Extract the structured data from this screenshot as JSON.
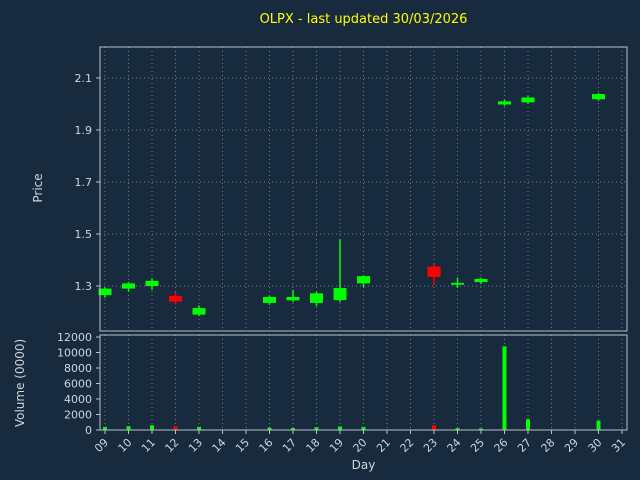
{
  "colors": {
    "background": "#182a3d",
    "title": "#ffff00",
    "text": "#cdd5de",
    "grid": "#aab6c2",
    "spine": "#b9c2cc",
    "up": "#00ff00",
    "down": "#ff0000"
  },
  "chart_data": {
    "type": "candlestick",
    "title": "OLPX - last updated 30/03/2026",
    "xlabel": "Day",
    "ylabel_price": "Price",
    "ylabel_volume": "Volume (0000)",
    "x_ticks": [
      "09",
      "10",
      "11",
      "12",
      "13",
      "14",
      "15",
      "16",
      "17",
      "18",
      "19",
      "20",
      "21",
      "22",
      "23",
      "24",
      "25",
      "26",
      "27",
      "28",
      "29",
      "30",
      "31"
    ],
    "price_ticks": [
      1.3,
      1.5,
      1.7,
      1.9,
      2.1
    ],
    "price_range": [
      1.127,
      2.219
    ],
    "volume_ticks": [
      0,
      2000,
      4000,
      6000,
      8000,
      10000,
      12000
    ],
    "volume_range": [
      0,
      12260
    ],
    "grid": "dotted",
    "legend": "none",
    "candles": [
      {
        "day": 9,
        "open": 1.265,
        "high": 1.295,
        "low": 1.255,
        "close": 1.29,
        "volume": 400
      },
      {
        "day": 10,
        "open": 1.29,
        "high": 1.315,
        "low": 1.28,
        "close": 1.31,
        "volume": 500
      },
      {
        "day": 11,
        "open": 1.3,
        "high": 1.33,
        "low": 1.285,
        "close": 1.32,
        "volume": 600
      },
      {
        "day": 12,
        "open": 1.262,
        "high": 1.278,
        "low": 1.228,
        "close": 1.24,
        "volume": 500
      },
      {
        "day": 13,
        "open": 1.19,
        "high": 1.225,
        "low": 1.185,
        "close": 1.215,
        "volume": 400
      },
      {
        "day": 16,
        "open": 1.235,
        "high": 1.262,
        "low": 1.228,
        "close": 1.258,
        "volume": 300
      },
      {
        "day": 17,
        "open": 1.245,
        "high": 1.285,
        "low": 1.238,
        "close": 1.258,
        "volume": 250
      },
      {
        "day": 18,
        "open": 1.235,
        "high": 1.278,
        "low": 1.222,
        "close": 1.272,
        "volume": 350
      },
      {
        "day": 19,
        "open": 1.246,
        "high": 1.48,
        "low": 1.238,
        "close": 1.292,
        "volume": 450
      },
      {
        "day": 20,
        "open": 1.31,
        "high": 1.34,
        "low": 1.295,
        "close": 1.338,
        "volume": 400
      },
      {
        "day": 23,
        "open": 1.375,
        "high": 1.385,
        "low": 1.302,
        "close": 1.335,
        "volume": 600
      },
      {
        "day": 24,
        "open": 1.305,
        "high": 1.332,
        "low": 1.293,
        "close": 1.312,
        "volume": 250
      },
      {
        "day": 25,
        "open": 1.315,
        "high": 1.332,
        "low": 1.308,
        "close": 1.327,
        "volume": 200
      },
      {
        "day": 26,
        "open": 1.998,
        "high": 2.015,
        "low": 1.992,
        "close": 2.01,
        "volume": 10800
      },
      {
        "day": 27,
        "open": 2.006,
        "high": 2.03,
        "low": 2.0,
        "close": 2.025,
        "volume": 1400
      },
      {
        "day": 30,
        "open": 2.018,
        "high": 2.042,
        "low": 2.012,
        "close": 2.038,
        "volume": 1200
      }
    ]
  }
}
